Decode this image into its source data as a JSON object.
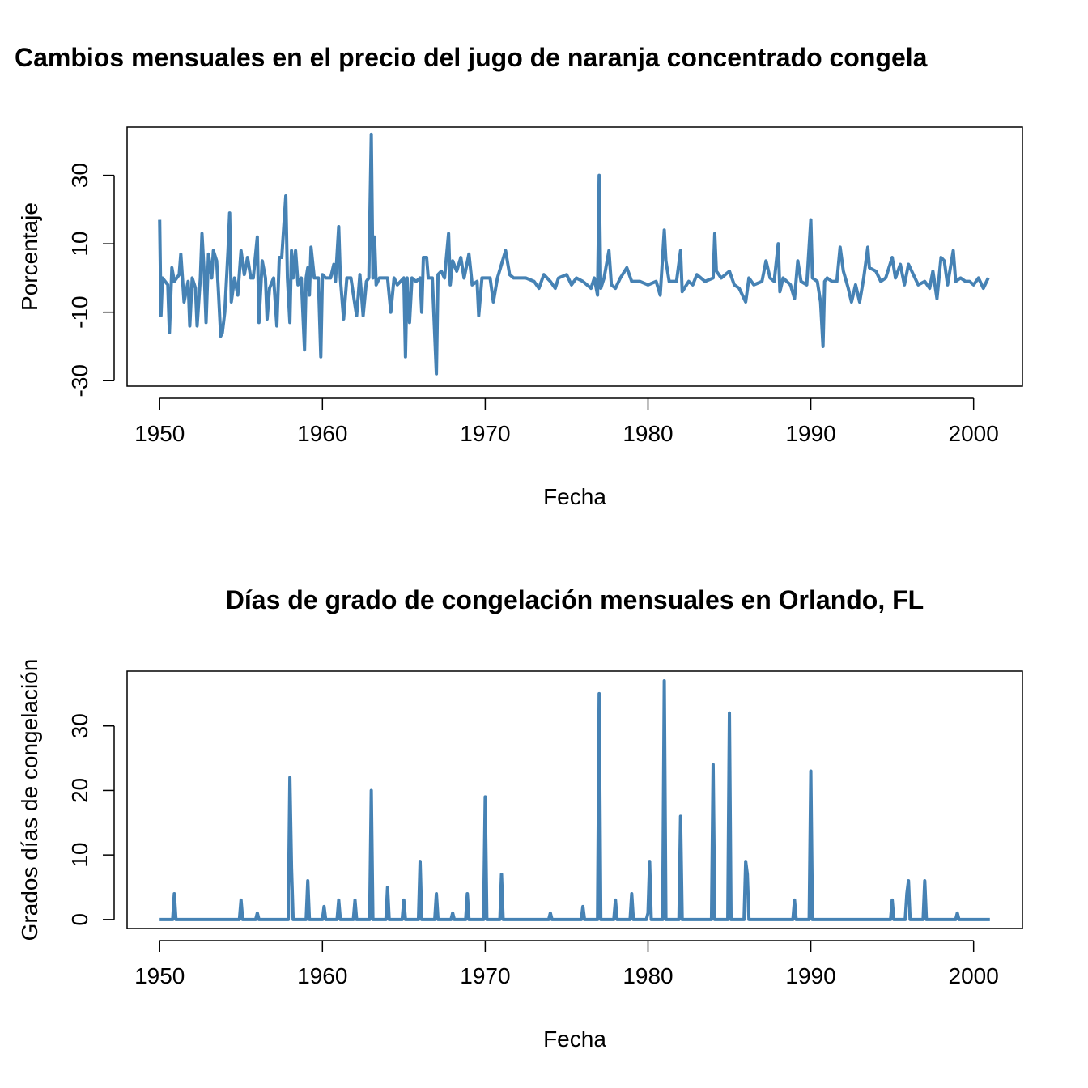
{
  "chart_data": [
    {
      "type": "line",
      "title": "Cambios mensuales en el precio del jugo de naranja concentrado congela",
      "xlabel": "Fecha",
      "ylabel": "Porcentaje",
      "xlim": [
        1948,
        2003
      ],
      "ylim": [
        -31.6,
        44.1
      ],
      "xticks": [
        1950,
        1960,
        1970,
        1980,
        1990,
        2000
      ],
      "yticks": [
        -30,
        -10,
        10,
        30
      ],
      "color": "#4682b4",
      "x": [
        1950.0,
        1950.08,
        1950.17,
        1950.5,
        1950.6,
        1950.75,
        1950.9,
        1951.2,
        1951.3,
        1951.5,
        1951.75,
        1951.85,
        1952.0,
        1952.2,
        1952.3,
        1952.5,
        1952.6,
        1952.75,
        1952.85,
        1953.0,
        1953.2,
        1953.3,
        1953.5,
        1953.6,
        1953.75,
        1953.85,
        1954.0,
        1954.2,
        1954.3,
        1954.4,
        1954.6,
        1954.8,
        1955.0,
        1955.2,
        1955.4,
        1955.6,
        1955.75,
        1956.0,
        1956.1,
        1956.3,
        1956.5,
        1956.6,
        1956.75,
        1957.0,
        1957.2,
        1957.35,
        1957.5,
        1957.75,
        1957.85,
        1958.0,
        1958.1,
        1958.2,
        1958.35,
        1958.5,
        1958.7,
        1958.9,
        1959.0,
        1959.1,
        1959.2,
        1959.3,
        1959.5,
        1959.75,
        1959.9,
        1960.0,
        1960.2,
        1960.5,
        1960.7,
        1960.8,
        1961.0,
        1961.1,
        1961.3,
        1961.5,
        1961.75,
        1962.0,
        1962.1,
        1962.3,
        1962.5,
        1962.7,
        1962.85,
        1963.0,
        1963.1,
        1963.2,
        1963.3,
        1963.5,
        1964.0,
        1964.2,
        1964.4,
        1964.6,
        1965.0,
        1965.1,
        1965.2,
        1965.35,
        1965.5,
        1965.75,
        1966.0,
        1966.1,
        1966.2,
        1966.4,
        1966.5,
        1966.75,
        1967.0,
        1967.1,
        1967.3,
        1967.5,
        1967.75,
        1967.85,
        1968.0,
        1968.25,
        1968.5,
        1968.7,
        1969.0,
        1969.2,
        1969.5,
        1969.6,
        1969.8,
        1970.0,
        1970.3,
        1970.5,
        1970.75,
        1971.0,
        1971.25,
        1971.5,
        1971.75,
        1972.0,
        1972.5,
        1973.0,
        1973.3,
        1973.6,
        1974.0,
        1974.3,
        1974.5,
        1975.0,
        1975.3,
        1975.6,
        1976.0,
        1976.5,
        1976.7,
        1976.9,
        1977.0,
        1977.1,
        1977.3,
        1977.6,
        1977.75,
        1978.0,
        1978.3,
        1978.7,
        1979.0,
        1979.5,
        1980.0,
        1980.5,
        1980.75,
        1981.0,
        1981.1,
        1981.3,
        1981.75,
        1982.0,
        1982.1,
        1982.5,
        1982.75,
        1983.0,
        1983.5,
        1984.0,
        1984.1,
        1984.2,
        1984.5,
        1985.0,
        1985.3,
        1985.6,
        1986.0,
        1986.2,
        1986.5,
        1987.0,
        1987.25,
        1987.5,
        1987.75,
        1988.0,
        1988.1,
        1988.3,
        1988.75,
        1989.0,
        1989.2,
        1989.4,
        1989.75,
        1990.0,
        1990.1,
        1990.4,
        1990.6,
        1990.75,
        1990.85,
        1991.0,
        1991.3,
        1991.6,
        1991.8,
        1992.0,
        1992.3,
        1992.5,
        1992.75,
        1993.0,
        1993.25,
        1993.5,
        1993.6,
        1994.0,
        1994.3,
        1994.6,
        1995.0,
        1995.2,
        1995.5,
        1995.75,
        1996.0,
        1996.3,
        1996.6,
        1997.0,
        1997.3,
        1997.5,
        1997.75,
        1998.0,
        1998.2,
        1998.4,
        1998.75,
        1998.9,
        1999.2,
        1999.5,
        1999.75,
        2000.0,
        2000.3,
        2000.6,
        2000.9
      ],
      "values": [
        17,
        -11,
        0,
        -2,
        -16,
        3,
        -1,
        1,
        7,
        -7,
        -1,
        -14,
        0,
        -3,
        -14,
        0,
        13,
        0,
        -13,
        7,
        0,
        8,
        5,
        -3,
        -17,
        -16,
        -10,
        8,
        19,
        -7,
        0,
        -5,
        8,
        1,
        6,
        0,
        0,
        12,
        -13,
        5,
        0,
        -12,
        -3,
        0,
        -14,
        6,
        6,
        24,
        0,
        -13,
        8,
        0,
        8,
        -2,
        0,
        -21,
        0,
        3,
        -5,
        9,
        0,
        0,
        -23,
        1,
        0,
        0,
        4,
        -1,
        15,
        0,
        -12,
        0,
        0,
        -8,
        -11,
        1,
        -11,
        -1,
        0,
        42,
        0,
        12,
        -2,
        0,
        0,
        -10,
        0,
        -2,
        0,
        -23,
        0,
        -13,
        0,
        -1,
        0,
        -10,
        6,
        6,
        0,
        0,
        -28,
        1,
        2,
        0,
        13,
        -2,
        5,
        2,
        6,
        0,
        7,
        -2,
        -1,
        -11,
        0,
        0,
        0,
        -7,
        0,
        4,
        8,
        1,
        0,
        0,
        0,
        -1,
        -3,
        1,
        -1,
        -3,
        0,
        1,
        -2,
        0,
        -1,
        -3,
        0,
        -5,
        30,
        -3,
        0,
        8,
        -2,
        -3,
        0,
        3,
        -1,
        -1,
        -2,
        -1,
        -5,
        14,
        5,
        -1,
        -1,
        8,
        -4,
        -1,
        -2,
        1,
        -1,
        0,
        13,
        2,
        0,
        2,
        -2,
        -3,
        -7,
        0,
        -2,
        -1,
        5,
        0,
        -1,
        10,
        -4,
        0,
        -2,
        -6,
        5,
        -1,
        -2,
        17,
        0,
        -1,
        -7,
        -20,
        -1,
        0,
        -1,
        -1,
        9,
        2,
        -3,
        -7,
        -2,
        -7,
        0,
        9,
        3,
        2,
        -1,
        0,
        6,
        0,
        4,
        -2,
        4,
        1,
        -2,
        -1,
        -3,
        2,
        -6,
        6,
        5,
        -2,
        8,
        -1,
        0,
        -1,
        -1,
        -2,
        0,
        -3,
        0
      ]
    },
    {
      "type": "line",
      "title": "Días de grado de congelación mensuales en Orlando, FL",
      "xlabel": "Fecha",
      "ylabel": "Grados días de congelación",
      "xlim": [
        1948,
        2003
      ],
      "ylim": [
        -1.4,
        38.5
      ],
      "xticks": [
        1950,
        1960,
        1970,
        1980,
        1990,
        2000
      ],
      "yticks": [
        0,
        10,
        20,
        30
      ],
      "color": "#4682b4",
      "x": [
        1950.0,
        1950.8,
        1950.9,
        1951.0,
        1954.9,
        1955.0,
        1955.1,
        1955.9,
        1956.0,
        1956.1,
        1957.9,
        1958.0,
        1958.1,
        1958.2,
        1959.0,
        1959.1,
        1959.2,
        1960.0,
        1960.1,
        1960.2,
        1960.9,
        1961.0,
        1961.1,
        1961.9,
        1962.0,
        1962.1,
        1962.9,
        1963.0,
        1963.1,
        1963.9,
        1964.0,
        1964.1,
        1964.9,
        1965.0,
        1965.1,
        1965.9,
        1966.0,
        1966.1,
        1966.9,
        1967.0,
        1967.1,
        1967.9,
        1968.0,
        1968.1,
        1968.8,
        1968.9,
        1969.0,
        1969.9,
        1970.0,
        1970.1,
        1970.9,
        1971.0,
        1971.1,
        1973.9,
        1974.0,
        1974.1,
        1975.9,
        1976.0,
        1976.1,
        1976.9,
        1977.0,
        1977.1,
        1977.9,
        1978.0,
        1978.1,
        1978.9,
        1979.0,
        1979.1,
        1979.9,
        1980.0,
        1980.1,
        1980.2,
        1980.9,
        1981.0,
        1981.1,
        1981.9,
        1982.0,
        1982.1,
        1983.9,
        1984.0,
        1984.1,
        1984.9,
        1985.0,
        1985.1,
        1985.9,
        1986.0,
        1986.1,
        1986.2,
        1988.9,
        1989.0,
        1989.1,
        1989.9,
        1990.0,
        1990.1,
        1994.9,
        1995.0,
        1995.1,
        1995.8,
        1995.9,
        1996.0,
        1996.1,
        1996.9,
        1997.0,
        1997.1,
        1998.9,
        1999.0,
        1999.1,
        2001.0
      ],
      "values": [
        0,
        0,
        4,
        0,
        0,
        3,
        0,
        0,
        1,
        0,
        0,
        22,
        8,
        0,
        0,
        6,
        0,
        0,
        2,
        0,
        0,
        3,
        0,
        0,
        3,
        0,
        0,
        20,
        0,
        0,
        5,
        0,
        0,
        3,
        0,
        0,
        9,
        0,
        0,
        4,
        0,
        0,
        1,
        0,
        0,
        4,
        0,
        0,
        19,
        0,
        0,
        7,
        0,
        0,
        1,
        0,
        0,
        2,
        0,
        0,
        35,
        0,
        0,
        3,
        0,
        0,
        4,
        0,
        0,
        1,
        9,
        0,
        0,
        37,
        0,
        0,
        16,
        0,
        0,
        24,
        0,
        0,
        32,
        0,
        0,
        9,
        7,
        0,
        0,
        3,
        0,
        0,
        23,
        0,
        0,
        3,
        0,
        0,
        4,
        6,
        0,
        0,
        6,
        0,
        0,
        1,
        0,
        0
      ]
    }
  ]
}
